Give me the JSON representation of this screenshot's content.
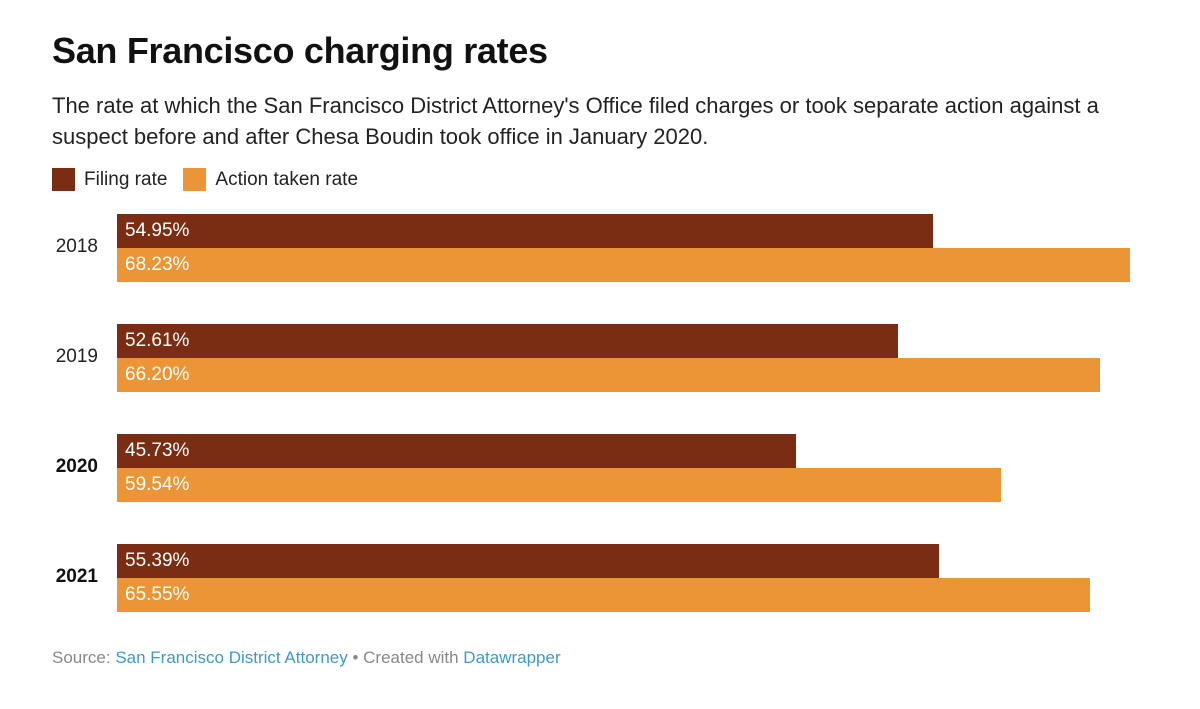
{
  "chart_data": {
    "type": "bar",
    "orientation": "horizontal",
    "title": "San Francisco charging rates",
    "subtitle": "The rate at which the San Francisco District Attorney's Office filed charges or took separate action against a suspect before and after Chesa Boudin took office in January 2020.",
    "categories": [
      "2018",
      "2019",
      "2020",
      "2021"
    ],
    "bold_categories": [
      "2020",
      "2021"
    ],
    "series": [
      {
        "name": "Filing rate",
        "color": "#7a2d12",
        "values": [
          54.95,
          52.61,
          45.73,
          55.39
        ],
        "labels": [
          "54.95%",
          "52.61%",
          "45.73%",
          "55.39%"
        ]
      },
      {
        "name": "Action taken rate",
        "color": "#ec9537",
        "values": [
          68.23,
          66.2,
          59.54,
          65.55
        ],
        "labels": [
          "68.23%",
          "66.20%",
          "59.54%",
          "65.55%"
        ]
      }
    ],
    "xlim": [
      0,
      68.23
    ],
    "legend_position": "top-left"
  },
  "footer": {
    "source_label": "Source: ",
    "source_link": "San Francisco District Attorney",
    "separator": " • Created with ",
    "tool_link": "Datawrapper"
  }
}
